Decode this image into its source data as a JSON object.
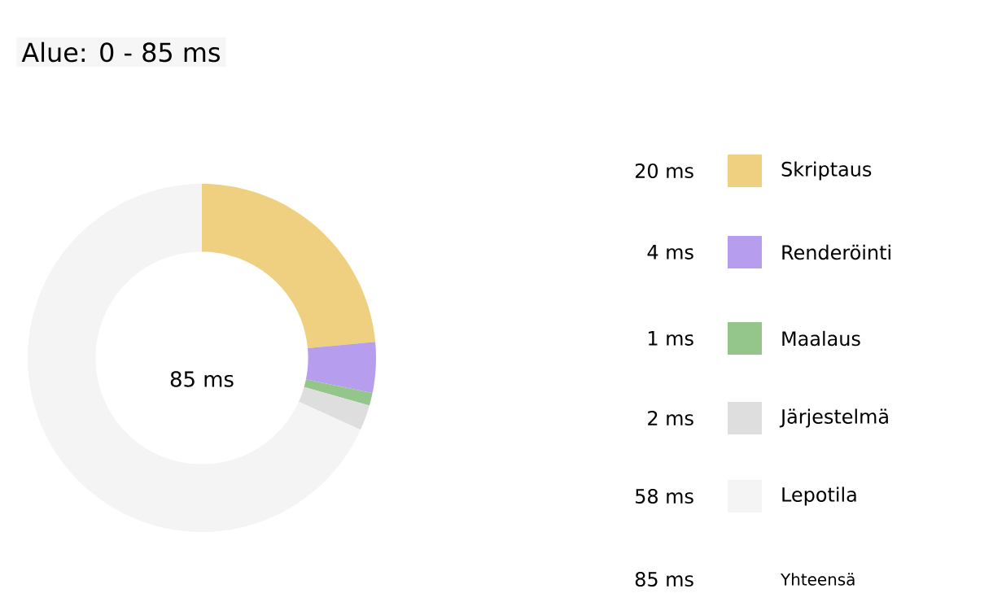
{
  "chart_data": {
    "type": "donut",
    "title": "Alue: 0 - 85 ms",
    "categories": [
      "Skriptaus",
      "Renderöinti",
      "Maalaus",
      "Järjestelmä",
      "Lepotila"
    ],
    "values": [
      20,
      4,
      1,
      2,
      58
    ],
    "colors": [
      "#efd081",
      "#b79ded",
      "#94c68c",
      "#dedede",
      "#f4f4f4"
    ],
    "value_labels": [
      "20 ms",
      "4 ms",
      "1 ms",
      "2 ms",
      "58 ms"
    ],
    "legend": "right",
    "annotations": [
      "85 ms",
      "85 ms",
      "Yhteensä"
    ]
  }
}
